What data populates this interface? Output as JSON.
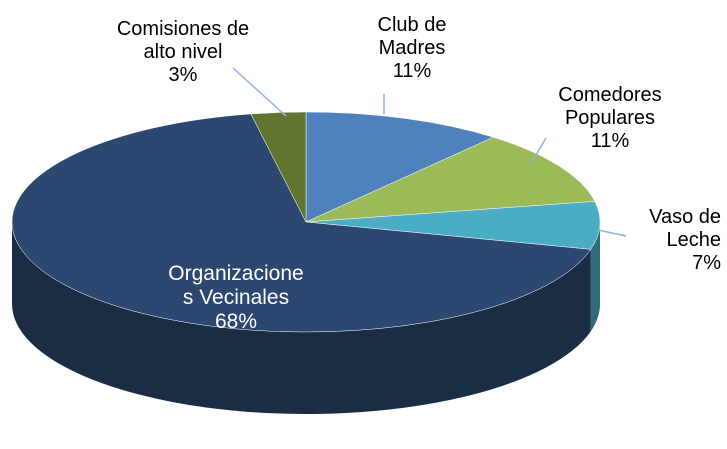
{
  "chart_data": {
    "type": "pie",
    "categories": [
      "Club de\nMadres",
      "Comedores\nPopulares",
      "Vaso de\nLeche",
      "Organizacione\ns Vecinales",
      "Comisiones de\nalto nivel"
    ],
    "values": [
      11,
      11,
      7,
      68,
      3
    ],
    "value_labels": [
      "11%",
      "11%",
      "7%",
      "68%",
      "3%"
    ],
    "colors": [
      "#4f81bd",
      "#9bbb59",
      "#4bacc6",
      "#2c4770",
      "#5f7530"
    ]
  }
}
